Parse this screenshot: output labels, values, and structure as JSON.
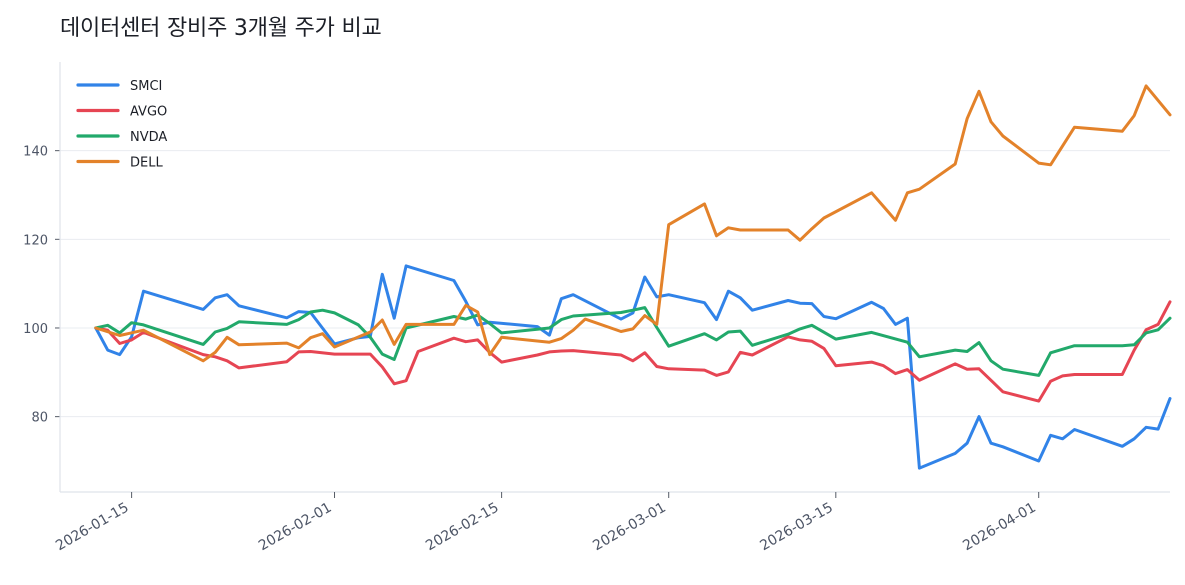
{
  "chart_data": {
    "type": "line",
    "title": "데이터센터 장비주 3개월 주가 비교",
    "xlabel": "",
    "ylabel": "",
    "x_range": [
      "2026-01-09",
      "2026-04-12"
    ],
    "ylim": [
      63,
      160
    ],
    "grid": "horizontal",
    "legend_position": "top-left",
    "y_ticks": [
      80,
      100,
      120,
      140
    ],
    "x_ticks": [
      "2026-01-15",
      "2026-02-01",
      "2026-02-15",
      "2026-03-01",
      "2026-03-15",
      "2026-04-01"
    ],
    "series": [
      {
        "name": "SMCI",
        "color": "#3183e8",
        "points": [
          [
            "2026-01-12",
            100.0
          ],
          [
            "2026-01-13",
            95.0
          ],
          [
            "2026-01-14",
            94.0
          ],
          [
            "2026-01-15",
            98.0
          ],
          [
            "2026-01-16",
            108.3
          ],
          [
            "2026-01-21",
            104.2
          ],
          [
            "2026-01-22",
            106.8
          ],
          [
            "2026-01-23",
            107.5
          ],
          [
            "2026-01-24",
            105.0
          ],
          [
            "2026-01-28",
            102.3
          ],
          [
            "2026-01-29",
            103.7
          ],
          [
            "2026-01-30",
            103.5
          ],
          [
            "2026-02-01",
            96.4
          ],
          [
            "2026-02-03",
            97.8
          ],
          [
            "2026-02-04",
            98.1
          ],
          [
            "2026-02-05",
            112.1
          ],
          [
            "2026-02-06",
            102.2
          ],
          [
            "2026-02-07",
            114.0
          ],
          [
            "2026-02-11",
            110.7
          ],
          [
            "2026-02-12",
            106.0
          ],
          [
            "2026-02-13",
            100.7
          ],
          [
            "2026-02-14",
            101.3
          ],
          [
            "2026-02-18",
            100.3
          ],
          [
            "2026-02-19",
            98.4
          ],
          [
            "2026-02-20",
            106.6
          ],
          [
            "2026-02-21",
            107.5
          ],
          [
            "2026-02-25",
            102.0
          ],
          [
            "2026-02-26",
            103.4
          ],
          [
            "2026-02-27",
            111.5
          ],
          [
            "2026-02-28",
            107.0
          ],
          [
            "2026-03-01",
            107.5
          ],
          [
            "2026-03-04",
            105.7
          ],
          [
            "2026-03-05",
            101.9
          ],
          [
            "2026-03-06",
            108.3
          ],
          [
            "2026-03-07",
            106.8
          ],
          [
            "2026-03-08",
            104.0
          ],
          [
            "2026-03-11",
            106.2
          ],
          [
            "2026-03-12",
            105.6
          ],
          [
            "2026-03-13",
            105.5
          ],
          [
            "2026-03-14",
            102.6
          ],
          [
            "2026-03-15",
            102.1
          ],
          [
            "2026-03-18",
            105.8
          ],
          [
            "2026-03-19",
            104.4
          ],
          [
            "2026-03-20",
            100.8
          ],
          [
            "2026-03-21",
            102.2
          ],
          [
            "2026-03-22",
            68.4
          ],
          [
            "2026-03-25",
            71.7
          ],
          [
            "2026-03-26",
            74.0
          ],
          [
            "2026-03-27",
            80.0
          ],
          [
            "2026-03-28",
            74.0
          ],
          [
            "2026-03-29",
            73.2
          ],
          [
            "2026-04-01",
            70.0
          ],
          [
            "2026-04-02",
            75.8
          ],
          [
            "2026-04-03",
            75.0
          ],
          [
            "2026-04-04",
            77.1
          ],
          [
            "2026-04-08",
            73.3
          ],
          [
            "2026-04-09",
            75.0
          ],
          [
            "2026-04-10",
            77.6
          ],
          [
            "2026-04-11",
            77.2
          ],
          [
            "2026-04-12",
            84.1
          ]
        ]
      },
      {
        "name": "AVGO",
        "color": "#e64553",
        "points": [
          [
            "2026-01-12",
            100.0
          ],
          [
            "2026-01-13",
            99.5
          ],
          [
            "2026-01-14",
            96.5
          ],
          [
            "2026-01-15",
            97.3
          ],
          [
            "2026-01-16",
            99.0
          ],
          [
            "2026-01-21",
            94.0
          ],
          [
            "2026-01-22",
            93.5
          ],
          [
            "2026-01-23",
            92.6
          ],
          [
            "2026-01-24",
            91.0
          ],
          [
            "2026-01-28",
            92.4
          ],
          [
            "2026-01-29",
            94.6
          ],
          [
            "2026-01-30",
            94.7
          ],
          [
            "2026-02-01",
            94.1
          ],
          [
            "2026-02-03",
            94.1
          ],
          [
            "2026-02-04",
            94.1
          ],
          [
            "2026-02-05",
            91.2
          ],
          [
            "2026-02-06",
            87.4
          ],
          [
            "2026-02-07",
            88.1
          ],
          [
            "2026-02-08",
            94.7
          ],
          [
            "2026-02-11",
            97.7
          ],
          [
            "2026-02-12",
            96.9
          ],
          [
            "2026-02-13",
            97.3
          ],
          [
            "2026-02-14",
            94.5
          ],
          [
            "2026-02-15",
            92.3
          ],
          [
            "2026-02-18",
            93.9
          ],
          [
            "2026-02-19",
            94.6
          ],
          [
            "2026-02-20",
            94.8
          ],
          [
            "2026-02-21",
            94.9
          ],
          [
            "2026-02-25",
            93.9
          ],
          [
            "2026-02-26",
            92.6
          ],
          [
            "2026-02-27",
            94.4
          ],
          [
            "2026-02-28",
            91.3
          ],
          [
            "2026-03-01",
            90.8
          ],
          [
            "2026-03-04",
            90.5
          ],
          [
            "2026-03-05",
            89.3
          ],
          [
            "2026-03-06",
            90.1
          ],
          [
            "2026-03-07",
            94.5
          ],
          [
            "2026-03-08",
            93.9
          ],
          [
            "2026-03-11",
            98.0
          ],
          [
            "2026-03-12",
            97.3
          ],
          [
            "2026-03-13",
            97.0
          ],
          [
            "2026-03-14",
            95.4
          ],
          [
            "2026-03-15",
            91.5
          ],
          [
            "2026-03-18",
            92.3
          ],
          [
            "2026-03-19",
            91.5
          ],
          [
            "2026-03-20",
            89.7
          ],
          [
            "2026-03-21",
            90.6
          ],
          [
            "2026-03-22",
            88.2
          ],
          [
            "2026-03-25",
            91.9
          ],
          [
            "2026-03-26",
            90.7
          ],
          [
            "2026-03-27",
            90.8
          ],
          [
            "2026-03-28",
            88.2
          ],
          [
            "2026-03-29",
            85.6
          ],
          [
            "2026-04-01",
            83.5
          ],
          [
            "2026-04-02",
            88.0
          ],
          [
            "2026-04-03",
            89.2
          ],
          [
            "2026-04-04",
            89.5
          ],
          [
            "2026-04-08",
            89.5
          ],
          [
            "2026-04-09",
            95.0
          ],
          [
            "2026-04-10",
            99.6
          ],
          [
            "2026-04-11",
            100.8
          ],
          [
            "2026-04-12",
            105.9
          ]
        ]
      },
      {
        "name": "NVDA",
        "color": "#22a96b",
        "points": [
          [
            "2026-01-12",
            100.0
          ],
          [
            "2026-01-13",
            100.6
          ],
          [
            "2026-01-14",
            98.9
          ],
          [
            "2026-01-15",
            101.2
          ],
          [
            "2026-01-16",
            100.7
          ],
          [
            "2026-01-21",
            96.3
          ],
          [
            "2026-01-22",
            99.1
          ],
          [
            "2026-01-23",
            99.9
          ],
          [
            "2026-01-24",
            101.4
          ],
          [
            "2026-01-28",
            100.8
          ],
          [
            "2026-01-29",
            101.9
          ],
          [
            "2026-01-30",
            103.6
          ],
          [
            "2026-01-31",
            104.0
          ],
          [
            "2026-02-01",
            103.4
          ],
          [
            "2026-02-03",
            100.7
          ],
          [
            "2026-02-04",
            97.9
          ],
          [
            "2026-02-05",
            94.1
          ],
          [
            "2026-02-06",
            92.9
          ],
          [
            "2026-02-07",
            100.0
          ],
          [
            "2026-02-11",
            102.6
          ],
          [
            "2026-02-12",
            102.0
          ],
          [
            "2026-02-13",
            102.9
          ],
          [
            "2026-02-14",
            101.0
          ],
          [
            "2026-02-15",
            98.9
          ],
          [
            "2026-02-19",
            100.0
          ],
          [
            "2026-02-20",
            101.9
          ],
          [
            "2026-02-21",
            102.7
          ],
          [
            "2026-02-25",
            103.5
          ],
          [
            "2026-02-26",
            104.0
          ],
          [
            "2026-02-27",
            104.6
          ],
          [
            "2026-02-28",
            100.1
          ],
          [
            "2026-03-01",
            95.9
          ],
          [
            "2026-03-04",
            98.7
          ],
          [
            "2026-03-05",
            97.3
          ],
          [
            "2026-03-06",
            99.1
          ],
          [
            "2026-03-07",
            99.3
          ],
          [
            "2026-03-08",
            96.1
          ],
          [
            "2026-03-11",
            98.6
          ],
          [
            "2026-03-12",
            99.8
          ],
          [
            "2026-03-13",
            100.6
          ],
          [
            "2026-03-15",
            97.5
          ],
          [
            "2026-03-18",
            99.0
          ],
          [
            "2026-03-21",
            96.8
          ],
          [
            "2026-03-22",
            93.5
          ],
          [
            "2026-03-25",
            95.0
          ],
          [
            "2026-03-26",
            94.7
          ],
          [
            "2026-03-27",
            96.7
          ],
          [
            "2026-03-28",
            92.6
          ],
          [
            "2026-03-29",
            90.7
          ],
          [
            "2026-04-01",
            89.3
          ],
          [
            "2026-04-02",
            94.4
          ],
          [
            "2026-04-04",
            96.0
          ],
          [
            "2026-04-08",
            96.0
          ],
          [
            "2026-04-09",
            96.2
          ],
          [
            "2026-04-10",
            98.9
          ],
          [
            "2026-04-11",
            99.6
          ],
          [
            "2026-04-12",
            102.2
          ]
        ]
      },
      {
        "name": "DELL",
        "color": "#e3822a",
        "points": [
          [
            "2026-01-12",
            100.0
          ],
          [
            "2026-01-14",
            98.3
          ],
          [
            "2026-01-16",
            99.5
          ],
          [
            "2026-01-21",
            92.6
          ],
          [
            "2026-01-22",
            94.5
          ],
          [
            "2026-01-23",
            97.9
          ],
          [
            "2026-01-24",
            96.2
          ],
          [
            "2026-01-28",
            96.6
          ],
          [
            "2026-01-29",
            95.5
          ],
          [
            "2026-01-30",
            97.8
          ],
          [
            "2026-01-31",
            98.7
          ],
          [
            "2026-02-01",
            95.7
          ],
          [
            "2026-02-04",
            99.1
          ],
          [
            "2026-02-05",
            101.8
          ],
          [
            "2026-02-06",
            96.3
          ],
          [
            "2026-02-07",
            100.8
          ],
          [
            "2026-02-11",
            100.8
          ],
          [
            "2026-02-12",
            105.1
          ],
          [
            "2026-02-13",
            103.6
          ],
          [
            "2026-02-14",
            94.0
          ],
          [
            "2026-02-15",
            97.9
          ],
          [
            "2026-02-19",
            96.8
          ],
          [
            "2026-02-20",
            97.6
          ],
          [
            "2026-02-21",
            99.5
          ],
          [
            "2026-02-22",
            102.0
          ],
          [
            "2026-02-25",
            99.2
          ],
          [
            "2026-02-26",
            99.8
          ],
          [
            "2026-02-27",
            102.8
          ],
          [
            "2026-02-28",
            100.8
          ],
          [
            "2026-03-01",
            123.3
          ],
          [
            "2026-03-04",
            128.0
          ],
          [
            "2026-03-05",
            120.8
          ],
          [
            "2026-03-06",
            122.6
          ],
          [
            "2026-03-07",
            122.1
          ],
          [
            "2026-03-11",
            122.1
          ],
          [
            "2026-03-12",
            119.8
          ],
          [
            "2026-03-13",
            122.4
          ],
          [
            "2026-03-14",
            124.8
          ],
          [
            "2026-03-18",
            130.5
          ],
          [
            "2026-03-20",
            124.3
          ],
          [
            "2026-03-21",
            130.5
          ],
          [
            "2026-03-22",
            131.3
          ],
          [
            "2026-03-25",
            137.0
          ],
          [
            "2026-03-26",
            147.2
          ],
          [
            "2026-03-27",
            153.4
          ],
          [
            "2026-03-28",
            146.5
          ],
          [
            "2026-03-29",
            143.3
          ],
          [
            "2026-04-01",
            137.2
          ],
          [
            "2026-04-02",
            136.8
          ],
          [
            "2026-04-04",
            145.3
          ],
          [
            "2026-04-08",
            144.4
          ],
          [
            "2026-04-09",
            147.9
          ],
          [
            "2026-04-10",
            154.6
          ],
          [
            "2026-04-12",
            148.1
          ]
        ]
      }
    ]
  }
}
